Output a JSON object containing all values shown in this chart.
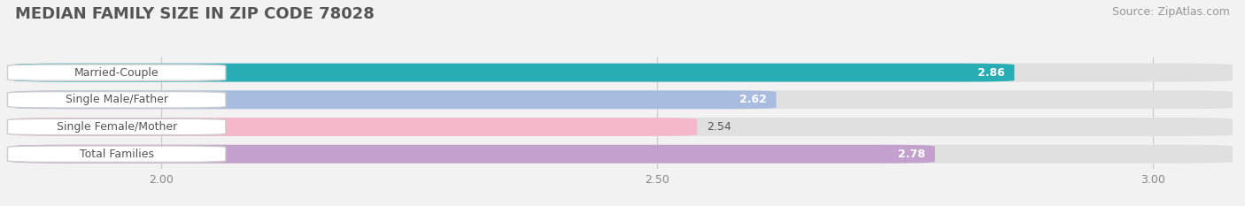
{
  "title": "MEDIAN FAMILY SIZE IN ZIP CODE 78028",
  "source": "Source: ZipAtlas.com",
  "categories": [
    "Married-Couple",
    "Single Male/Father",
    "Single Female/Mother",
    "Total Families"
  ],
  "values": [
    2.86,
    2.62,
    2.54,
    2.78
  ],
  "bar_colors": [
    "#29adb5",
    "#a8bce0",
    "#f5b8cb",
    "#c4a0cc"
  ],
  "label_colors": [
    "white",
    "white",
    "#666666",
    "white"
  ],
  "value_inside": [
    true,
    true,
    false,
    true
  ],
  "xlim_min": 1.85,
  "xlim_max": 3.08,
  "xticks": [
    2.0,
    2.5,
    3.0
  ],
  "background_color": "#f2f2f2",
  "bar_bg_color": "#e0e0e0",
  "title_fontsize": 13,
  "source_fontsize": 9,
  "label_fontsize": 9,
  "value_fontsize": 9,
  "tick_fontsize": 9
}
